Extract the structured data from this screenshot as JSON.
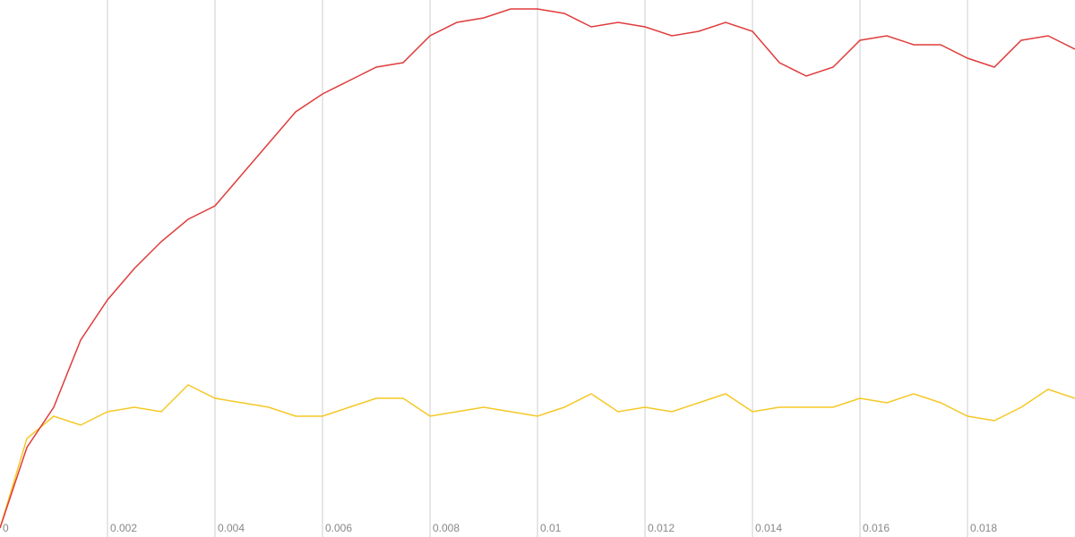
{
  "chart_data": {
    "type": "line",
    "x": [
      0,
      0.0005,
      0.001,
      0.0015,
      0.002,
      0.0025,
      0.003,
      0.0035,
      0.004,
      0.0045,
      0.005,
      0.0055,
      0.006,
      0.0065,
      0.007,
      0.0075,
      0.008,
      0.0085,
      0.009,
      0.0095,
      0.01,
      0.0105,
      0.011,
      0.0115,
      0.012,
      0.0125,
      0.013,
      0.0135,
      0.014,
      0.0145,
      0.015,
      0.0155,
      0.016,
      0.0165,
      0.017,
      0.0175,
      0.018,
      0.0185,
      0.019,
      0.0195,
      0.02
    ],
    "series": [
      {
        "color": "#e03c3c",
        "values": [
          0,
          90,
          135,
          210,
          255,
          290,
          320,
          345,
          360,
          395,
          430,
          465,
          485,
          500,
          515,
          520,
          550,
          565,
          570,
          580,
          580,
          575,
          560,
          565,
          560,
          550,
          555,
          565,
          555,
          520,
          505,
          515,
          545,
          550,
          540,
          540,
          525,
          515,
          545,
          550,
          535
        ]
      },
      {
        "color": "#f5c825",
        "values": [
          0,
          100,
          125,
          115,
          130,
          135,
          130,
          160,
          145,
          140,
          135,
          125,
          125,
          135,
          145,
          145,
          125,
          130,
          135,
          130,
          125,
          135,
          150,
          130,
          135,
          130,
          140,
          150,
          130,
          135,
          135,
          135,
          145,
          140,
          150,
          140,
          125,
          120,
          135,
          155,
          145
        ]
      }
    ],
    "xlim": [
      0,
      0.02
    ],
    "xticks": [
      0,
      0.002,
      0.004,
      0.006,
      0.008,
      0.01,
      0.012,
      0.014,
      0.016,
      0.018
    ],
    "ylim": [
      0,
      590
    ],
    "grid": true
  }
}
